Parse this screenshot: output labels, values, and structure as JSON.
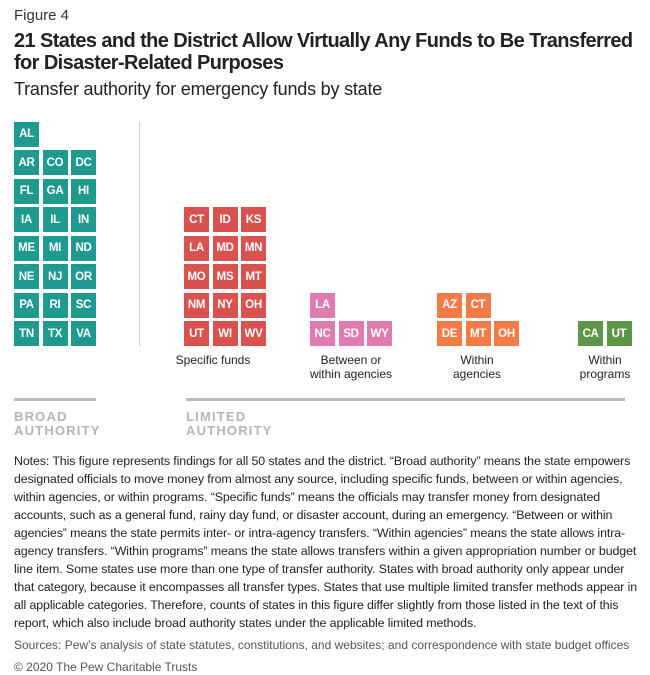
{
  "figure_label": "Figure 4",
  "title": "21 States and the District Allow Virtually Any Funds to Be Transferred for Disaster-Related Purposes",
  "subtitle": "Transfer authority for emergency funds by state",
  "chart_data": {
    "type": "table",
    "categories": [
      {
        "key": "broad",
        "label": "",
        "color": "#1e9a8e",
        "rows": [
          [
            "AL"
          ],
          [
            "AR",
            "CO",
            "DC"
          ],
          [
            "FL",
            "GA",
            "HI"
          ],
          [
            "IA",
            "IL",
            "IN"
          ],
          [
            "ME",
            "MI",
            "ND"
          ],
          [
            "NE",
            "NJ",
            "OR"
          ],
          [
            "PA",
            "RI",
            "SC"
          ],
          [
            "TN",
            "TX",
            "VA"
          ]
        ]
      },
      {
        "key": "specific",
        "label": "Specific funds",
        "color": "#d9524f",
        "rows": [
          [
            "CT",
            "ID",
            "KS"
          ],
          [
            "LA",
            "MD",
            "MN"
          ],
          [
            "MO",
            "MS",
            "MT"
          ],
          [
            "NM",
            "NY",
            "OH"
          ],
          [
            "UT",
            "WI",
            "WV"
          ]
        ]
      },
      {
        "key": "between",
        "label": "Between or within agencies",
        "color": "#e07bb0",
        "rows": [
          [
            "LA"
          ],
          [
            "NC",
            "SD",
            "WY"
          ]
        ]
      },
      {
        "key": "within_agencies",
        "label": "Within agencies",
        "color": "#f47b47",
        "rows": [
          [
            "AZ",
            "CT"
          ],
          [
            "DE",
            "MT",
            "OH"
          ]
        ]
      },
      {
        "key": "within_programs",
        "label": "Within programs",
        "color": "#5e9649",
        "rows": [
          [
            "CA",
            "UT"
          ]
        ]
      }
    ],
    "groups": [
      {
        "label_1": "BROAD",
        "label_2": "AUTHORITY"
      },
      {
        "label_1": "LIMITED",
        "label_2": "AUTHORITY"
      }
    ]
  },
  "labels": {
    "specific_1": "Specific funds",
    "between_1": "Between or",
    "between_2": "within agencies",
    "agencies_1": "Within",
    "agencies_2": "agencies",
    "programs_1": "Within",
    "programs_2": "programs"
  },
  "notes": "Notes: This figure represents findings for all 50 states and the district. “Broad authority” means the state empowers designated officials to move money from almost any source, including specific funds, between or within agencies, within agencies, or within programs. “Specific funds” means the officials may transfer money from designated accounts, such as a general fund, rainy day fund, or disaster account, during an emergency. “Between or within agencies” means the state permits inter- or intra-agency transfers. “Within agencies” means the state allows intra-agency transfers. “Within programs” means the state allows transfers within a given appropriation number or budget line item. Some states use more than one type of transfer authority. States with broad authority only appear under that category, because it encompasses all transfer types. States that use multiple limited transfer methods appear in all applicable categories. Therefore, counts of states in this figure differ slightly from those listed in the text of this report, which also include broad authority states under the applicable limited methods.",
  "sources": "Sources: Pew’s analysis of state statutes, constitutions, and websites; and correspondence with state budget offices",
  "copyright": "© 2020 The Pew Charitable Trusts"
}
